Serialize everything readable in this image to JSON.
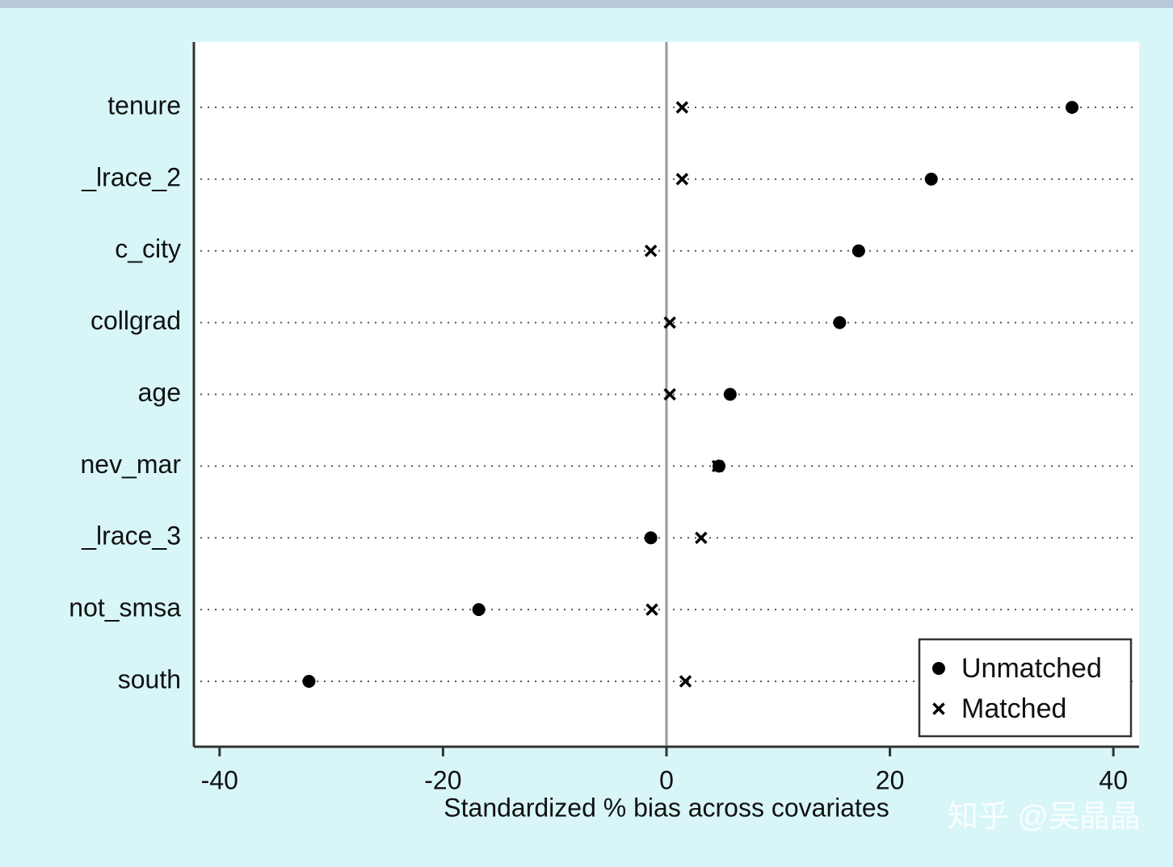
{
  "chart_data": {
    "type": "dot",
    "xlabel": "Standardized % bias across covariates",
    "categories": [
      "tenure",
      "_lrace_2",
      "c_city",
      "collgrad",
      "age",
      "nev_mar",
      "_lrace_3",
      "not_smsa",
      "south"
    ],
    "series": [
      {
        "name": "Unmatched",
        "marker": "circle",
        "color": "#000000",
        "values": [
          36.3,
          23.7,
          17.2,
          15.5,
          5.7,
          4.7,
          -1.4,
          -16.8,
          -32.0
        ]
      },
      {
        "name": "Matched",
        "marker": "x",
        "color": "#000000",
        "values": [
          1.4,
          1.4,
          -1.4,
          0.3,
          0.3,
          4.6,
          3.1,
          -1.3,
          1.7
        ]
      }
    ],
    "xlim": [
      -42.3,
      42.3
    ],
    "xticks": [
      -40,
      -20,
      0,
      20,
      40
    ],
    "xline": 0,
    "grid": true,
    "legend": "bottom right",
    "watermark": "知乎 @吴晶晶"
  }
}
